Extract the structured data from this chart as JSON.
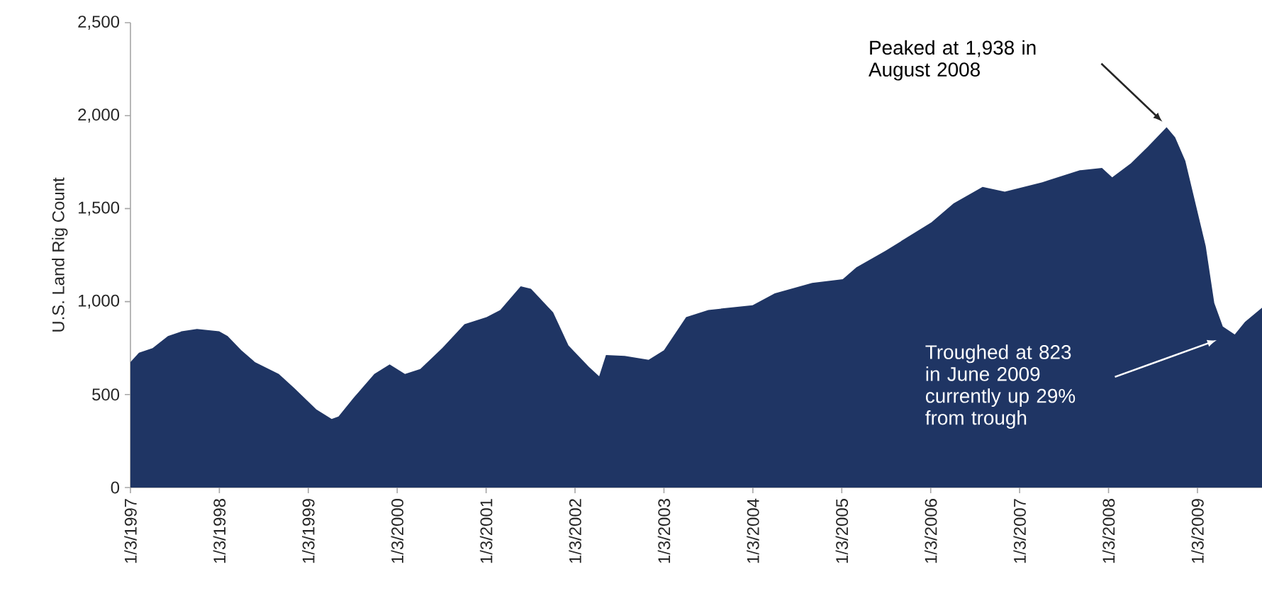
{
  "chart_data": {
    "type": "area",
    "ylabel": "U.S. Land Rig Count",
    "x": [
      "1997-01-03",
      "1997-02-07",
      "1997-04-04",
      "1997-06-06",
      "1997-08-01",
      "1997-10-03",
      "1998-01-02",
      "1998-02-06",
      "1998-04-03",
      "1998-05-29",
      "1998-09-04",
      "1998-11-06",
      "1999-02-05",
      "1999-04-09",
      "1999-05-07",
      "1999-07-09",
      "1999-10-01",
      "1999-12-03",
      "2000-02-04",
      "2000-04-07",
      "2000-07-07",
      "2000-10-06",
      "2001-01-05",
      "2001-03-02",
      "2001-05-25",
      "2001-07-06",
      "2001-10-05",
      "2001-12-07",
      "2002-03-01",
      "2002-04-12",
      "2002-05-10",
      "2002-07-26",
      "2002-11-01",
      "2003-01-03",
      "2003-04-04",
      "2003-07-04",
      "2004-01-02",
      "2004-04-02",
      "2004-09-03",
      "2005-01-07",
      "2005-03-04",
      "2005-07-01",
      "2006-01-06",
      "2006-04-07",
      "2006-08-04",
      "2006-11-03",
      "2007-04-06",
      "2007-09-07",
      "2007-12-07",
      "2008-01-18",
      "2008-04-04",
      "2008-06-13",
      "2008-08-29",
      "2008-10-03",
      "2008-11-14",
      "2009-02-06",
      "2009-03-13",
      "2009-04-17",
      "2009-06-05",
      "2009-07-17",
      "2009-09-25"
    ],
    "values": [
      675,
      725,
      750,
      815,
      840,
      853,
      840,
      815,
      738,
      675,
      611,
      535,
      420,
      369,
      382,
      484,
      611,
      662,
      611,
      637,
      751,
      878,
      917,
      955,
      1082,
      1069,
      942,
      764,
      649,
      598,
      713,
      708,
      687,
      738,
      917,
      955,
      980,
      1044,
      1100,
      1120,
      1184,
      1273,
      1426,
      1528,
      1617,
      1591,
      1642,
      1706,
      1719,
      1668,
      1744,
      1833,
      1938,
      1884,
      1757,
      1298,
      993,
      866,
      823,
      891,
      967
    ],
    "color": "#1f3564",
    "xlim": [
      "1997-01-03",
      "2009-09-25"
    ],
    "xticks": [
      {
        "value": "1997-01-03",
        "label": "1/3/1997"
      },
      {
        "value": "1998-01-03",
        "label": "1/3/1998"
      },
      {
        "value": "1999-01-03",
        "label": "1/3/1999"
      },
      {
        "value": "2000-01-03",
        "label": "1/3/2000"
      },
      {
        "value": "2001-01-03",
        "label": "1/3/2001"
      },
      {
        "value": "2002-01-03",
        "label": "1/3/2002"
      },
      {
        "value": "2003-01-03",
        "label": "1/3/2003"
      },
      {
        "value": "2004-01-03",
        "label": "1/3/2004"
      },
      {
        "value": "2005-01-03",
        "label": "1/3/2005"
      },
      {
        "value": "2006-01-03",
        "label": "1/3/2006"
      },
      {
        "value": "2007-01-03",
        "label": "1/3/2007"
      },
      {
        "value": "2008-01-03",
        "label": "1/3/2008"
      },
      {
        "value": "2009-01-03",
        "label": "1/3/2009"
      }
    ],
    "ylim": [
      0,
      2500
    ],
    "yticks": [
      0,
      500,
      {
        "value": 1000,
        "label": "1,000"
      },
      {
        "value": 1500,
        "label": "1,500"
      },
      {
        "value": 2000,
        "label": "2,000"
      },
      {
        "value": 2500,
        "label": "2,500"
      }
    ],
    "annotations": [
      "Peaked at 1,938 in August 2008",
      "Troughed at 823 in June 2009 currently up 29% from trough"
    ]
  }
}
